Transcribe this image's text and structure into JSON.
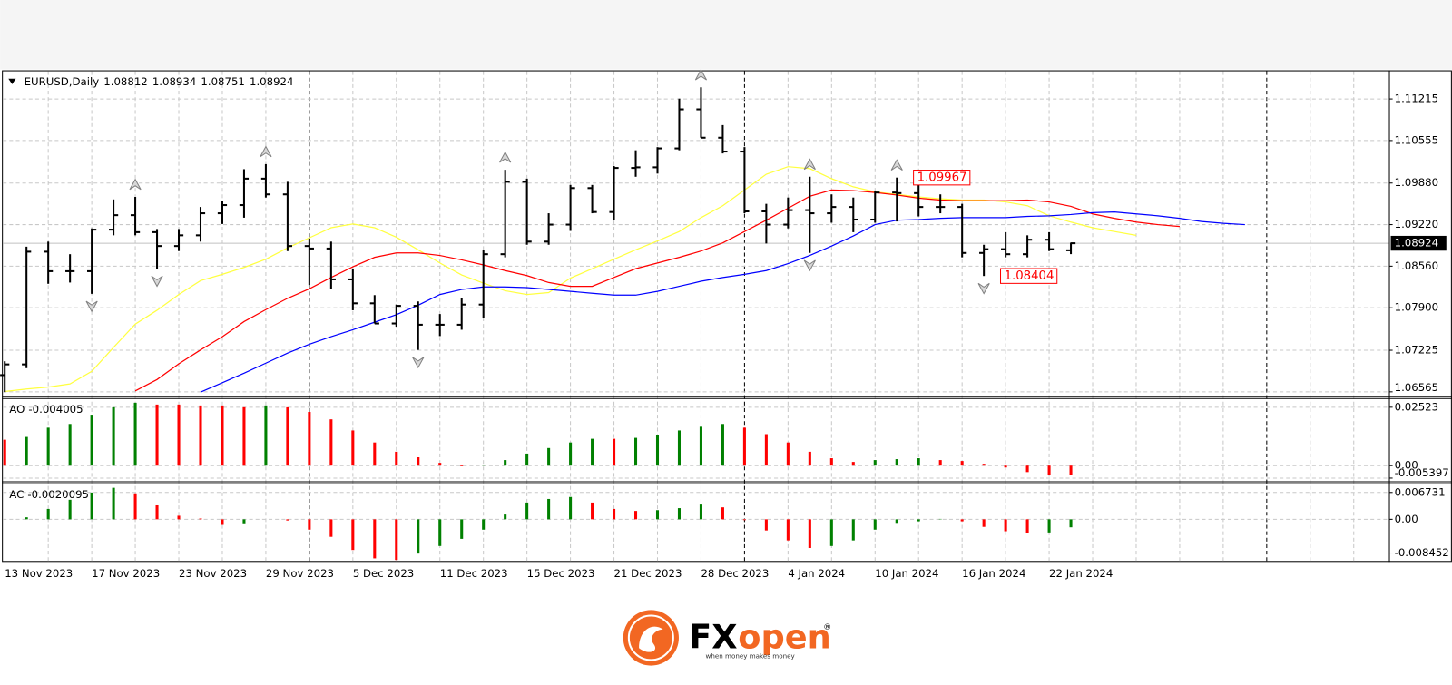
{
  "chart_data": [
    {
      "type": "ohlc",
      "symbol": "EURUSD,Daily",
      "categories": [
        "13 Nov 2023",
        null,
        null,
        null,
        "17 Nov 2023",
        null,
        null,
        null,
        "23 Nov 2023",
        null,
        null,
        null,
        "29 Nov 2023",
        null,
        null,
        null,
        "5 Dec 2023",
        null,
        null,
        null,
        "11 Dec 2023",
        null,
        null,
        null,
        "15 Dec 2023",
        null,
        null,
        null,
        "21 Dec 2023",
        null,
        null,
        null,
        "28 Dec 2023",
        null,
        null,
        null,
        "4 Jan 2024",
        null,
        null,
        null,
        "10 Jan 2024",
        null,
        null,
        null,
        "16 Jan 2024",
        null,
        null,
        null,
        "22 Jan 2024",
        null,
        null,
        null,
        null,
        null,
        null,
        null,
        null,
        null
      ],
      "open": [
        1.0683,
        1.07,
        1.0879,
        1.0848,
        1.0848,
        1.0914,
        1.0937,
        1.091,
        1.0888,
        1.0905,
        1.094,
        1.0953,
        1.0995,
        1.097,
        1.0888,
        1.0884,
        1.0835,
        1.0797,
        1.0765,
        1.0793,
        1.0763,
        1.0763,
        1.0795,
        1.0875,
        1.099,
        1.0895,
        1.0922,
        1.098,
        1.0942,
        1.1012,
        1.1013,
        1.1043,
        1.1105,
        1.106,
        1.1038,
        1.0943,
        1.0922,
        1.0945,
        1.094,
        1.095,
        1.093,
        1.0973,
        1.0972,
        1.095,
        1.095,
        1.0877,
        1.0883,
        1.0875,
        1.0898,
        1.08812,
        null,
        null,
        null,
        null,
        null,
        null,
        null,
        null
      ],
      "high": [
        1.0705,
        1.0887,
        1.0895,
        1.0875,
        1.0916,
        1.0962,
        1.0966,
        1.0915,
        1.0915,
        1.095,
        1.096,
        1.101,
        1.1018,
        1.099,
        1.09,
        1.0895,
        1.0852,
        1.081,
        1.0795,
        1.08,
        1.078,
        1.0805,
        1.0882,
        1.1009,
        1.0995,
        1.094,
        1.0985,
        1.0985,
        1.1015,
        1.104,
        1.1045,
        1.1122,
        1.114,
        1.108,
        1.1045,
        1.0955,
        1.0965,
        1.0998,
        1.097,
        1.0965,
        1.0975,
        1.09967,
        1.099,
        1.097,
        1.0955,
        1.089,
        1.091,
        1.0905,
        1.091,
        1.08934,
        null,
        null,
        null,
        null,
        null,
        null,
        null,
        null
      ],
      "low": [
        1.0656,
        1.0694,
        1.0828,
        1.083,
        1.0812,
        1.0905,
        1.0905,
        1.0852,
        1.088,
        1.0895,
        1.0923,
        1.0933,
        1.0965,
        1.088,
        1.0826,
        1.082,
        1.0786,
        1.0765,
        1.076,
        1.0723,
        1.0745,
        1.0755,
        1.0773,
        1.087,
        1.089,
        1.089,
        1.0912,
        1.094,
        1.093,
        1.0998,
        1.1003,
        1.104,
        1.106,
        1.1035,
        1.094,
        1.0892,
        1.0916,
        1.0877,
        1.0925,
        1.091,
        1.0925,
        1.0927,
        1.0935,
        1.094,
        1.087,
        1.08404,
        1.087,
        1.087,
        1.088,
        1.08751,
        null,
        null,
        null,
        null,
        null,
        null,
        null,
        null
      ],
      "close": [
        1.07,
        1.0879,
        1.0848,
        1.0848,
        1.0914,
        1.0937,
        1.091,
        1.0888,
        1.0905,
        1.094,
        1.0953,
        1.0995,
        1.097,
        1.0888,
        1.0884,
        1.0835,
        1.0797,
        1.0765,
        1.0793,
        1.0763,
        1.0763,
        1.0795,
        1.0875,
        1.099,
        1.0895,
        1.0922,
        1.098,
        1.0942,
        1.1012,
        1.1013,
        1.1043,
        1.1105,
        1.106,
        1.1038,
        1.0943,
        1.0922,
        1.0945,
        1.094,
        1.095,
        1.093,
        1.0973,
        1.0972,
        1.095,
        1.095,
        1.0877,
        1.0883,
        1.0875,
        1.0898,
        1.0883,
        1.08924,
        null,
        null,
        null,
        null,
        null,
        null,
        null,
        null
      ],
      "color": "#000000",
      "lines": [
        {
          "color": "#ffff40",
          "values": [
            1.0657,
            1.0661,
            1.0664,
            1.0669,
            1.0689,
            1.0727,
            1.0764,
            1.0786,
            1.0811,
            1.0833,
            1.0843,
            1.0854,
            1.0867,
            1.0885,
            1.0901,
            1.0917,
            1.0923,
            1.0917,
            1.0902,
            1.0882,
            1.0861,
            1.0842,
            1.0829,
            1.0817,
            1.0811,
            1.0814,
            1.0837,
            1.0852,
            1.0867,
            1.0882,
            1.0896,
            1.0911,
            1.0933,
            1.0952,
            1.0977,
            1.1002,
            1.1014,
            1.1011,
            1.0995,
            1.0982,
            1.0974,
            1.097,
            1.0966,
            1.0963,
            1.0961,
            1.0961,
            1.0958,
            1.0952,
            1.0936,
            1.0926,
            1.0917,
            1.0911,
            1.0905,
            null,
            null,
            null,
            null,
            null
          ]
        },
        {
          "color": "#ff0000",
          "values": [
            null,
            null,
            null,
            null,
            null,
            null,
            1.0658,
            1.0676,
            1.0701,
            1.0723,
            1.0744,
            1.0768,
            1.0787,
            1.0805,
            1.082,
            1.0838,
            1.0855,
            1.087,
            1.0877,
            1.0877,
            1.0873,
            1.0866,
            1.0858,
            1.0849,
            1.0841,
            1.083,
            1.0824,
            1.0824,
            1.0838,
            1.0852,
            1.0861,
            1.087,
            1.088,
            1.0893,
            1.0911,
            1.0929,
            1.0948,
            1.0967,
            1.0977,
            1.0976,
            1.0973,
            1.0969,
            1.0964,
            1.0961,
            1.096,
            1.096,
            1.096,
            1.0961,
            1.0958,
            1.0951,
            1.0939,
            1.0932,
            1.0926,
            1.0922,
            1.0919,
            null,
            null,
            null
          ]
        },
        {
          "color": "#0000ff",
          "values": [
            null,
            null,
            null,
            null,
            null,
            null,
            null,
            null,
            null,
            1.0656,
            1.0671,
            1.0686,
            1.0702,
            1.0718,
            1.0732,
            1.0744,
            1.0755,
            1.0767,
            1.0779,
            1.0794,
            1.0811,
            1.0819,
            1.0823,
            1.0823,
            1.0822,
            1.0819,
            1.0816,
            1.0813,
            1.081,
            1.081,
            1.0816,
            1.0824,
            1.0832,
            1.0838,
            1.0843,
            1.0849,
            1.086,
            1.0873,
            1.0888,
            1.0904,
            1.0922,
            1.0929,
            1.093,
            1.0932,
            1.0933,
            1.0933,
            1.0933,
            1.0935,
            1.0936,
            1.0938,
            1.0941,
            1.0942,
            1.0939,
            1.0936,
            1.0932,
            1.0927,
            1.0924,
            1.0922
          ]
        }
      ],
      "fractals_up": [
        6,
        12,
        23,
        32,
        37,
        41
      ],
      "fractals_down": [
        4,
        7,
        19,
        37,
        45
      ],
      "label_high_index": 41,
      "label_low_index": 45,
      "label_color": "#ff0000",
      "ylim": [
        1.0651,
        1.1164
      ],
      "yticks": [
        1.11215,
        1.10555,
        {
          "value": 1.0988,
          "label": "1.09880"
        },
        {
          "value": 1.0922,
          "label": "1.09220"
        },
        {
          "value": 1.0856,
          "label": "1.08560"
        },
        {
          "value": 1.079,
          "label": "1.07900"
        },
        1.07225,
        1.06565
      ],
      "grid": true
    },
    {
      "type": "histogram",
      "name": "AO",
      "values": [
        0.0112,
        0.0124,
        0.0164,
        0.018,
        0.022,
        0.0252,
        0.0272,
        0.0264,
        0.0264,
        0.026,
        0.026,
        0.0252,
        0.026,
        0.0252,
        0.0232,
        0.02,
        0.0152,
        0.01,
        0.006,
        0.0036,
        0.0012,
        -0.0003,
        0.0004,
        0.0024,
        0.0052,
        0.0076,
        0.01,
        0.0116,
        0.0116,
        0.012,
        0.0132,
        0.0152,
        0.0168,
        0.018,
        0.0164,
        0.0136,
        0.01,
        0.006,
        0.0032,
        0.0016,
        0.0024,
        0.0028,
        0.0032,
        0.0024,
        0.002,
        0.0008,
        -0.0008,
        -0.0028,
        -0.004,
        -0.004005,
        null,
        null,
        null,
        null,
        null,
        null,
        null,
        null
      ],
      "up_color": "#008000",
      "down_color": "#ff0000",
      "ylim": [
        -0.0064,
        0.0288
      ],
      "yticks": [
        0.02523,
        {
          "value": 0,
          "label": "0.00"
        },
        -0.005397
      ],
      "grid": true
    },
    {
      "type": "histogram",
      "name": "AC",
      "values": [
        0,
        0.0005,
        0.0026,
        0.0049,
        0.0067,
        0.0079,
        0.0065,
        0.0035,
        0.0009,
        0.0002,
        -0.0014,
        -0.001,
        0,
        -0.0003,
        -0.0026,
        -0.0044,
        -0.0077,
        -0.0098,
        -0.0102,
        -0.0086,
        -0.0067,
        -0.0049,
        -0.0026,
        0.0012,
        0.0042,
        0.0051,
        0.0056,
        0.0042,
        0.0026,
        0.0021,
        0.0023,
        0.0028,
        0.0037,
        0.003,
        -0.0002,
        -0.0028,
        -0.0053,
        -0.0072,
        -0.0067,
        -0.0053,
        -0.0026,
        -0.0009,
        -0.0005,
        0.0001,
        -0.0005,
        -0.0019,
        -0.003,
        -0.0035,
        -0.0033,
        -0.0020095,
        null,
        null,
        null,
        null,
        null,
        null,
        null,
        null
      ],
      "up_color": "#008000",
      "down_color": "#ff0000",
      "ylim": [
        -0.01068,
        0.00882
      ],
      "yticks": [
        0.006731,
        {
          "value": 0,
          "label": "0.00"
        },
        -0.008452
      ],
      "grid": true
    }
  ],
  "logo": {
    "brand_fx": "FX",
    "brand_open": "open",
    "registered": "®",
    "tagline": "when money makes money"
  }
}
